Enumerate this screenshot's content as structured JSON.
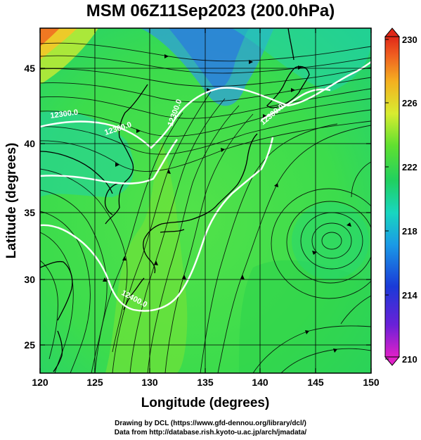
{
  "title": "MSM 06Z11Sep2023 (200.0hPa)",
  "axes": {
    "xlabel": "Longitude (degrees)",
    "ylabel": "Latitude  (degrees)",
    "x_ticks": [
      "120",
      "125",
      "130",
      "135",
      "140",
      "145",
      "150"
    ],
    "y_ticks": [
      "25",
      "30",
      "35",
      "40",
      "45"
    ],
    "x_range": [
      120,
      150
    ],
    "y_range": [
      22.5,
      47.6
    ]
  },
  "colorbar": {
    "ticks": [
      "230",
      "226",
      "222",
      "218",
      "214",
      "210"
    ],
    "range": [
      210,
      230
    ]
  },
  "contour_labels": [
    "12300.0",
    "12300.0",
    "12300.0",
    "12300.0",
    "12400.0"
  ],
  "credits": {
    "line1": "Drawing by DCL (https://www.gfd-dennou.org/library/dcl/)",
    "line2": "Data from http://database.rish.kyoto-u.ac.jp/arch/jmadata/"
  },
  "colors": {
    "field_main": "#3fe04a",
    "field_low": "#15c83c",
    "field_cyan": "#12d6b4",
    "field_blue": "#2f8ae6",
    "field_warm": "#e8f038",
    "field_hot": "#f07a24",
    "contour": "#ffffff",
    "streamline": "#000000"
  }
}
